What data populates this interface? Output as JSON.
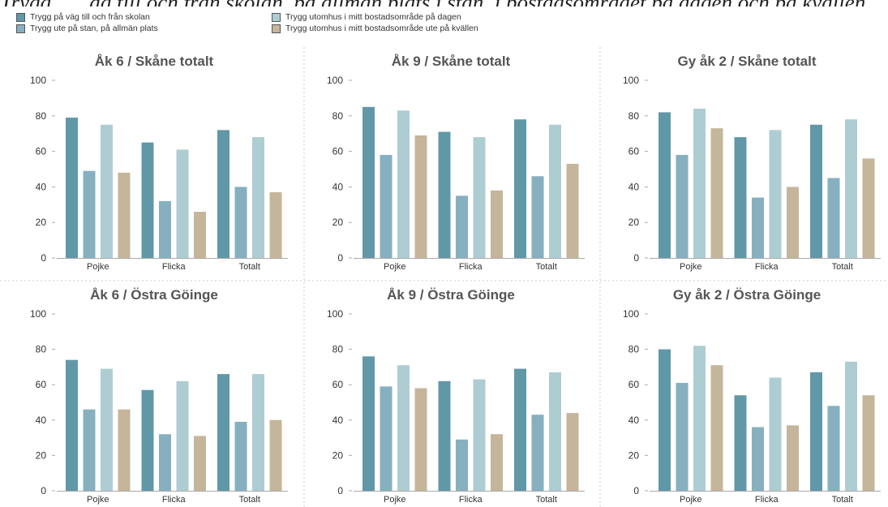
{
  "header": {
    "title": "Trygg... ...äg till och från skolan, på allmän plats i stan, i bostadsområdet på dagen och på kvällen"
  },
  "legend": {
    "items": [
      {
        "label": "Trygg på väg till och från skolan",
        "color": "#6198a8"
      },
      {
        "label": "Trygg ute på stan, på allmän plats",
        "color": "#86b0bf"
      },
      {
        "label": "Trygg utomhus i mitt bostadsområde på dagen",
        "color": "#aecdd3"
      },
      {
        "label": "Trygg utomhus i mitt bostadsområde ute på kvällen",
        "color": "#c5b59a"
      }
    ]
  },
  "chart_data": [
    {
      "type": "bar",
      "title": "Åk 6 / Skåne totalt",
      "categories": [
        "Pojke",
        "Flicka",
        "Totalt"
      ],
      "ylim": [
        0,
        100
      ],
      "yticks": [
        0,
        20,
        40,
        60,
        80,
        100
      ],
      "series": [
        {
          "name": "Trygg på väg till och från skolan",
          "values": [
            79,
            65,
            72
          ]
        },
        {
          "name": "Trygg ute på stan, på allmän plats",
          "values": [
            49,
            32,
            40
          ]
        },
        {
          "name": "Trygg utomhus i mitt bostadsområde på dagen",
          "values": [
            75,
            61,
            68
          ]
        },
        {
          "name": "Trygg utomhus i mitt bostadsområde ute på kvällen",
          "values": [
            48,
            26,
            37
          ]
        }
      ]
    },
    {
      "type": "bar",
      "title": "Åk 9 / Skåne totalt",
      "categories": [
        "Pojke",
        "Flicka",
        "Totalt"
      ],
      "ylim": [
        0,
        100
      ],
      "yticks": [
        0,
        20,
        40,
        60,
        80,
        100
      ],
      "series": [
        {
          "name": "Trygg på väg till och från skolan",
          "values": [
            85,
            71,
            78
          ]
        },
        {
          "name": "Trygg ute på stan, på allmän plats",
          "values": [
            58,
            35,
            46
          ]
        },
        {
          "name": "Trygg utomhus i mitt bostadsområde på dagen",
          "values": [
            83,
            68,
            75
          ]
        },
        {
          "name": "Trygg utomhus i mitt bostadsområde ute på kvällen",
          "values": [
            69,
            38,
            53
          ]
        }
      ]
    },
    {
      "type": "bar",
      "title": "Gy åk 2 / Skåne totalt",
      "categories": [
        "Pojke",
        "Flicka",
        "Totalt"
      ],
      "ylim": [
        0,
        100
      ],
      "yticks": [
        0,
        20,
        40,
        60,
        80,
        100
      ],
      "series": [
        {
          "name": "Trygg på väg till och från skolan",
          "values": [
            82,
            68,
            75
          ]
        },
        {
          "name": "Trygg ute på stan, på allmän plats",
          "values": [
            58,
            34,
            45
          ]
        },
        {
          "name": "Trygg utomhus i mitt bostadsområde på dagen",
          "values": [
            84,
            72,
            78
          ]
        },
        {
          "name": "Trygg utomhus i mitt bostadsområde ute på kvällen",
          "values": [
            73,
            40,
            56
          ]
        }
      ]
    },
    {
      "type": "bar",
      "title": "Åk 6 / Östra Göinge",
      "categories": [
        "Pojke",
        "Flicka",
        "Totalt"
      ],
      "ylim": [
        0,
        100
      ],
      "yticks": [
        0,
        20,
        40,
        60,
        80,
        100
      ],
      "series": [
        {
          "name": "Trygg på väg till och från skolan",
          "values": [
            74,
            57,
            66
          ]
        },
        {
          "name": "Trygg ute på stan, på allmän plats",
          "values": [
            46,
            32,
            39
          ]
        },
        {
          "name": "Trygg utomhus i mitt bostadsområde på dagen",
          "values": [
            69,
            62,
            66
          ]
        },
        {
          "name": "Trygg utomhus i mitt bostadsområde ute på kvällen",
          "values": [
            46,
            31,
            40
          ]
        }
      ]
    },
    {
      "type": "bar",
      "title": "Åk 9 / Östra Göinge",
      "categories": [
        "Pojke",
        "Flicka",
        "Totalt"
      ],
      "ylim": [
        0,
        100
      ],
      "yticks": [
        0,
        20,
        40,
        60,
        80,
        100
      ],
      "series": [
        {
          "name": "Trygg på väg till och från skolan",
          "values": [
            76,
            62,
            69
          ]
        },
        {
          "name": "Trygg ute på stan, på allmän plats",
          "values": [
            59,
            29,
            43
          ]
        },
        {
          "name": "Trygg utomhus i mitt bostadsområde på dagen",
          "values": [
            71,
            63,
            67
          ]
        },
        {
          "name": "Trygg utomhus i mitt bostadsområde ute på kvällen",
          "values": [
            58,
            32,
            44
          ]
        }
      ]
    },
    {
      "type": "bar",
      "title": "Gy åk 2 / Östra Göinge",
      "categories": [
        "Pojke",
        "Flicka",
        "Totalt"
      ],
      "ylim": [
        0,
        100
      ],
      "yticks": [
        0,
        20,
        40,
        60,
        80,
        100
      ],
      "series": [
        {
          "name": "Trygg på väg till och från skolan",
          "values": [
            80,
            54,
            67
          ]
        },
        {
          "name": "Trygg ute på stan, på allmän plats",
          "values": [
            61,
            36,
            48
          ]
        },
        {
          "name": "Trygg utomhus i mitt bostadsområde på dagen",
          "values": [
            82,
            64,
            73
          ]
        },
        {
          "name": "Trygg utomhus i mitt bostadsområde ute på kvällen",
          "values": [
            71,
            37,
            54
          ]
        }
      ]
    }
  ]
}
